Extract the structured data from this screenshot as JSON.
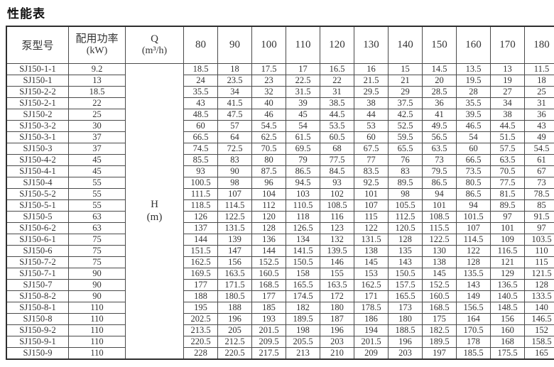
{
  "title": "性能表",
  "table": {
    "headers": {
      "model": "泵型号",
      "power_line1": "配用功率",
      "power_line2": "(kW)",
      "q_line1": "Q",
      "q_line2": "(m³/h)",
      "h_line1": "H",
      "h_line2": "(m)"
    },
    "flow_columns": [
      "80",
      "90",
      "100",
      "110",
      "120",
      "130",
      "140",
      "150",
      "160",
      "170",
      "180"
    ],
    "rows": [
      {
        "model": "SJ150-1-1",
        "power": "9.2",
        "h": [
          "18.5",
          "18",
          "17.5",
          "17",
          "16.5",
          "16",
          "15",
          "14.5",
          "13.5",
          "13",
          "11.5"
        ]
      },
      {
        "model": "SJ150-1",
        "power": "13",
        "h": [
          "24",
          "23.5",
          "23",
          "22.5",
          "22",
          "21.5",
          "21",
          "20",
          "19.5",
          "19",
          "18"
        ]
      },
      {
        "model": "SJ150-2-2",
        "power": "18.5",
        "h": [
          "35.5",
          "34",
          "32",
          "31.5",
          "31",
          "29.5",
          "29",
          "28.5",
          "28",
          "27",
          "25"
        ]
      },
      {
        "model": "SJ150-2-1",
        "power": "22",
        "h": [
          "43",
          "41.5",
          "40",
          "39",
          "38.5",
          "38",
          "37.5",
          "36",
          "35.5",
          "34",
          "31"
        ]
      },
      {
        "model": "SJ150-2",
        "power": "25",
        "h": [
          "48.5",
          "47.5",
          "46",
          "45",
          "44.5",
          "44",
          "42.5",
          "41",
          "39.5",
          "38",
          "36"
        ]
      },
      {
        "model": "SJ150-3-2",
        "power": "30",
        "h": [
          "60",
          "57",
          "54.5",
          "54",
          "53.5",
          "53",
          "52.5",
          "49.5",
          "46.5",
          "44.5",
          "43"
        ]
      },
      {
        "model": "SJ150-3-1",
        "power": "37",
        "h": [
          "66.5",
          "64",
          "62.5",
          "61.5",
          "60.5",
          "60",
          "59.5",
          "56.5",
          "54",
          "51.5",
          "49"
        ]
      },
      {
        "model": "SJ150-3",
        "power": "37",
        "h": [
          "74.5",
          "72.5",
          "70.5",
          "69.5",
          "68",
          "67.5",
          "65.5",
          "63.5",
          "60",
          "57.5",
          "54.5"
        ]
      },
      {
        "model": "SJ150-4-2",
        "power": "45",
        "h": [
          "85.5",
          "83",
          "80",
          "79",
          "77.5",
          "77",
          "76",
          "73",
          "66.5",
          "63.5",
          "61"
        ]
      },
      {
        "model": "SJ150-4-1",
        "power": "45",
        "h": [
          "93",
          "90",
          "87.5",
          "86.5",
          "84.5",
          "83.5",
          "83",
          "79.5",
          "73.5",
          "70.5",
          "67"
        ]
      },
      {
        "model": "SJ150-4",
        "power": "55",
        "h": [
          "100.5",
          "98",
          "96",
          "94.5",
          "93",
          "92.5",
          "89.5",
          "86.5",
          "80.5",
          "77.5",
          "73"
        ]
      },
      {
        "model": "SJ150-5-2",
        "power": "55",
        "h": [
          "111.5",
          "107",
          "104",
          "103",
          "102",
          "101",
          "98",
          "94",
          "86.5",
          "81.5",
          "78.5"
        ]
      },
      {
        "model": "SJ150-5-1",
        "power": "55",
        "h": [
          "118.5",
          "114.5",
          "112",
          "110.5",
          "108.5",
          "107",
          "105.5",
          "101",
          "94",
          "89.5",
          "85"
        ]
      },
      {
        "model": "SJ150-5",
        "power": "63",
        "h": [
          "126",
          "122.5",
          "120",
          "118",
          "116",
          "115",
          "112.5",
          "108.5",
          "101.5",
          "97",
          "91.5"
        ]
      },
      {
        "model": "SJ150-6-2",
        "power": "63",
        "h": [
          "137",
          "131.5",
          "128",
          "126.5",
          "123",
          "122",
          "120.5",
          "115.5",
          "107",
          "101",
          "97"
        ]
      },
      {
        "model": "SJ150-6-1",
        "power": "75",
        "h": [
          "144",
          "139",
          "136",
          "134",
          "132",
          "131.5",
          "128",
          "122.5",
          "114.5",
          "109",
          "103.5"
        ]
      },
      {
        "model": "SJ150-6",
        "power": "75",
        "h": [
          "151.5",
          "147",
          "144",
          "141.5",
          "139.5",
          "138",
          "135",
          "130",
          "122",
          "116.5",
          "110"
        ]
      },
      {
        "model": "SJ150-7-2",
        "power": "75",
        "h": [
          "162.5",
          "156",
          "152.5",
          "150.5",
          "146",
          "145",
          "143",
          "138",
          "128",
          "121",
          "115"
        ]
      },
      {
        "model": "SJ150-7-1",
        "power": "90",
        "h": [
          "169.5",
          "163.5",
          "160.5",
          "158",
          "155",
          "153",
          "150.5",
          "145",
          "135.5",
          "129",
          "121.5"
        ]
      },
      {
        "model": "SJ150-7",
        "power": "90",
        "h": [
          "177",
          "171.5",
          "168.5",
          "165.5",
          "163.5",
          "162.5",
          "157.5",
          "152.5",
          "143",
          "136.5",
          "128"
        ]
      },
      {
        "model": "SJ150-8-2",
        "power": "90",
        "h": [
          "188",
          "180.5",
          "177",
          "174.5",
          "172",
          "171",
          "165.5",
          "160.5",
          "149",
          "140.5",
          "133.5"
        ]
      },
      {
        "model": "SJ150-8-1",
        "power": "110",
        "h": [
          "195",
          "188",
          "185",
          "182",
          "180",
          "178.5",
          "173",
          "168.5",
          "156.5",
          "148.5",
          "140"
        ]
      },
      {
        "model": "SJ150-8",
        "power": "110",
        "h": [
          "202.5",
          "196",
          "193",
          "189.5",
          "187",
          "186",
          "180",
          "175",
          "164",
          "156",
          "146.5"
        ]
      },
      {
        "model": "SJ150-9-2",
        "power": "110",
        "h": [
          "213.5",
          "205",
          "201.5",
          "198",
          "196",
          "194",
          "188.5",
          "182.5",
          "170.5",
          "160",
          "152"
        ]
      },
      {
        "model": "SJ150-9-1",
        "power": "110",
        "h": [
          "220.5",
          "212.5",
          "209.5",
          "205.5",
          "203",
          "201.5",
          "196",
          "189.5",
          "178",
          "168",
          "158.5"
        ]
      },
      {
        "model": "SJ150-9",
        "power": "110",
        "h": [
          "228",
          "220.5",
          "217.5",
          "213",
          "210",
          "209",
          "203",
          "197",
          "185.5",
          "175.5",
          "165"
        ]
      }
    ]
  }
}
